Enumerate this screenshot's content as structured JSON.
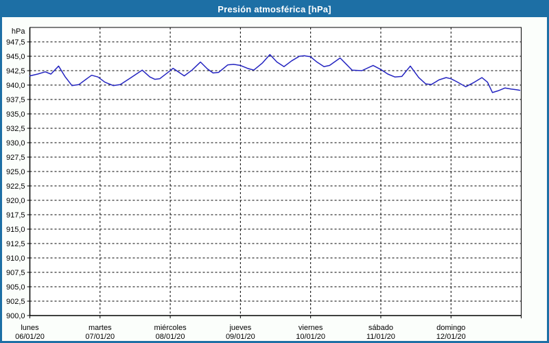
{
  "window": {
    "title": "Presión atmosférica [hPa]"
  },
  "colors": {
    "frame": "#1d6fa5",
    "titlebar_text": "#ffffff",
    "content_bg": "#fbfefb",
    "plot_bg": "#ffffff",
    "grid": "#000000",
    "axis": "#000000",
    "label": "#000000",
    "line": "#2323c0"
  },
  "chart_data": {
    "type": "line",
    "title": "Presión atmosférica [hPa]",
    "unit_label": "hPa",
    "xlabel": "",
    "ylabel": "hPa",
    "grid": true,
    "legend": "none",
    "ylim": [
      900,
      950
    ],
    "x_range_days": [
      0,
      7
    ],
    "yticks": [
      {
        "label": "947,5",
        "value": 947.5
      },
      {
        "label": "945,0",
        "value": 945.0
      },
      {
        "label": "942,5",
        "value": 942.5
      },
      {
        "label": "940,0",
        "value": 940.0
      },
      {
        "label": "937,5",
        "value": 937.5
      },
      {
        "label": "935,0",
        "value": 935.0
      },
      {
        "label": "932,5",
        "value": 932.5
      },
      {
        "label": "930,0",
        "value": 930.0
      },
      {
        "label": "927,5",
        "value": 927.5
      },
      {
        "label": "925,0",
        "value": 925.0
      },
      {
        "label": "922,5",
        "value": 922.5
      },
      {
        "label": "920,0",
        "value": 920.0
      },
      {
        "label": "917,5",
        "value": 917.5
      },
      {
        "label": "915,0",
        "value": 915.0
      },
      {
        "label": "912,5",
        "value": 912.5
      },
      {
        "label": "910,0",
        "value": 910.0
      },
      {
        "label": "907,5",
        "value": 907.5
      },
      {
        "label": "905,0",
        "value": 905.0
      },
      {
        "label": "902,5",
        "value": 902.5
      },
      {
        "label": "900,0",
        "value": 900.0
      }
    ],
    "x_days": [
      {
        "name": "lunes",
        "date": "06/01/20"
      },
      {
        "name": "martes",
        "date": "07/01/20"
      },
      {
        "name": "miércoles",
        "date": "08/01/20"
      },
      {
        "name": "jueves",
        "date": "09/01/20"
      },
      {
        "name": "viernes",
        "date": "10/01/20"
      },
      {
        "name": "sábado",
        "date": "11/01/20"
      },
      {
        "name": "domingo",
        "date": "12/01/20"
      }
    ],
    "series": [
      {
        "name": "Presión atmosférica",
        "color": "#2323c0",
        "points": [
          [
            0.0,
            941.6
          ],
          [
            0.11,
            941.9
          ],
          [
            0.22,
            942.3
          ],
          [
            0.3,
            941.9
          ],
          [
            0.41,
            943.3
          ],
          [
            0.5,
            941.5
          ],
          [
            0.6,
            939.9
          ],
          [
            0.7,
            940.1
          ],
          [
            0.8,
            941.0
          ],
          [
            0.88,
            941.7
          ],
          [
            0.97,
            941.4
          ],
          [
            1.07,
            940.5
          ],
          [
            1.19,
            939.9
          ],
          [
            1.29,
            940.1
          ],
          [
            1.43,
            941.2
          ],
          [
            1.6,
            942.6
          ],
          [
            1.71,
            941.4
          ],
          [
            1.78,
            941.0
          ],
          [
            1.85,
            941.1
          ],
          [
            1.99,
            942.4
          ],
          [
            2.04,
            942.9
          ],
          [
            2.2,
            941.6
          ],
          [
            2.31,
            942.6
          ],
          [
            2.43,
            944.0
          ],
          [
            2.53,
            942.8
          ],
          [
            2.61,
            942.1
          ],
          [
            2.69,
            942.2
          ],
          [
            2.82,
            943.5
          ],
          [
            2.9,
            943.6
          ],
          [
            3.0,
            943.4
          ],
          [
            3.1,
            942.9
          ],
          [
            3.19,
            942.6
          ],
          [
            3.31,
            943.8
          ],
          [
            3.42,
            945.3
          ],
          [
            3.52,
            944.0
          ],
          [
            3.62,
            943.2
          ],
          [
            3.73,
            944.2
          ],
          [
            3.84,
            945.0
          ],
          [
            3.91,
            945.1
          ],
          [
            4.0,
            944.9
          ],
          [
            4.09,
            944.0
          ],
          [
            4.19,
            943.2
          ],
          [
            4.27,
            943.4
          ],
          [
            4.42,
            944.7
          ],
          [
            4.51,
            943.6
          ],
          [
            4.59,
            942.6
          ],
          [
            4.73,
            942.5
          ],
          [
            4.89,
            943.4
          ],
          [
            5.0,
            942.7
          ],
          [
            5.1,
            941.9
          ],
          [
            5.2,
            941.4
          ],
          [
            5.3,
            941.5
          ],
          [
            5.42,
            943.3
          ],
          [
            5.54,
            941.3
          ],
          [
            5.64,
            940.2
          ],
          [
            5.72,
            940.1
          ],
          [
            5.83,
            940.9
          ],
          [
            5.93,
            941.3
          ],
          [
            6.0,
            941.1
          ],
          [
            6.08,
            940.6
          ],
          [
            6.21,
            939.7
          ],
          [
            6.32,
            940.4
          ],
          [
            6.44,
            941.3
          ],
          [
            6.52,
            940.5
          ],
          [
            6.59,
            938.7
          ],
          [
            6.67,
            939.0
          ],
          [
            6.77,
            939.5
          ],
          [
            6.86,
            939.3
          ],
          [
            6.93,
            939.2
          ],
          [
            6.98,
            939.1
          ]
        ]
      }
    ]
  }
}
